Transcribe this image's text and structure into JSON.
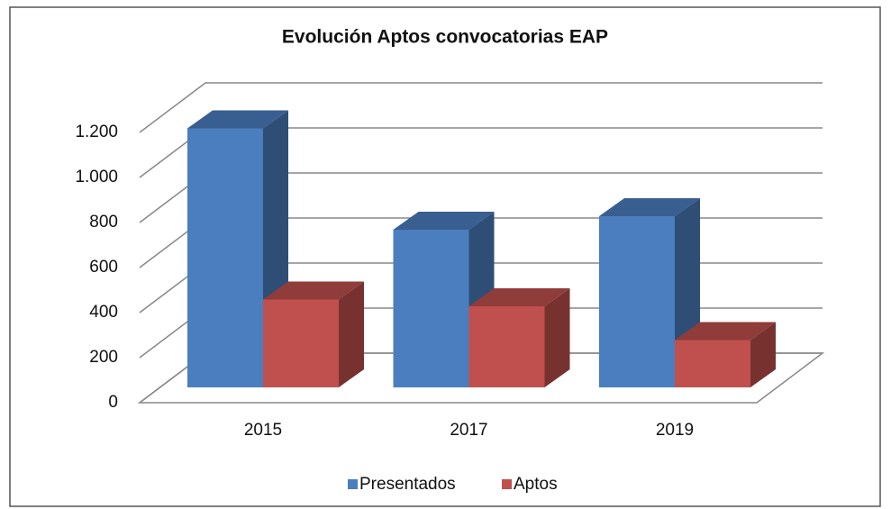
{
  "chart_data": {
    "type": "bar3d",
    "title": "Evolución Aptos convocatorias EAP",
    "categories": [
      "2015",
      "2017",
      "2019"
    ],
    "series": [
      {
        "name": "Presentados",
        "color": "#4a7ebf",
        "values": [
          1150,
          700,
          760
        ]
      },
      {
        "name": "Aptos",
        "color": "#c0504d",
        "values": [
          390,
          360,
          210
        ]
      }
    ],
    "ylim": [
      0,
      1200
    ],
    "yticks": [
      0,
      200,
      400,
      600,
      800,
      {
        "value": 1000,
        "label": "1.000"
      },
      {
        "value": 1200,
        "label": "1.200"
      }
    ],
    "grid": true,
    "legend": "bottom"
  }
}
